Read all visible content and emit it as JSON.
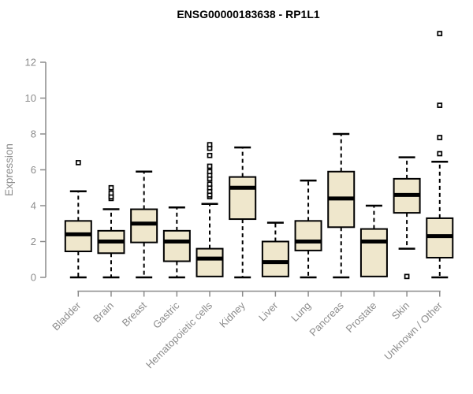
{
  "chart_data": {
    "type": "boxplot",
    "title": "ENSG00000183638 - RP1L1",
    "xlabel": "",
    "ylabel": "Expression",
    "yticks": [
      0,
      2,
      4,
      6,
      8,
      10,
      12
    ],
    "ylim": [
      -0.75,
      13.8
    ],
    "grid": "off",
    "legend": "none",
    "categories": [
      "Bladder",
      "Brain",
      "Breast",
      "Gastric",
      "Hematopoietic cells",
      "Kidney",
      "Liver",
      "Lung",
      "Pancreas",
      "Prostate",
      "Skin",
      "Unknown / Other"
    ],
    "boxes": [
      {
        "category": "Bladder",
        "whisker_low": 0,
        "q1": 1.45,
        "median": 2.4,
        "q3": 3.15,
        "whisker_high": 4.8,
        "outliers": [
          6.4
        ]
      },
      {
        "category": "Brain",
        "whisker_low": 0,
        "q1": 1.35,
        "median": 2.0,
        "q3": 2.6,
        "whisker_high": 3.8,
        "outliers": [
          4.4,
          4.5,
          4.7,
          5.0
        ]
      },
      {
        "category": "Breast",
        "whisker_low": 0,
        "q1": 1.95,
        "median": 3.0,
        "q3": 3.8,
        "whisker_high": 5.9,
        "outliers": []
      },
      {
        "category": "Gastric",
        "whisker_low": 0,
        "q1": 0.9,
        "median": 2.0,
        "q3": 2.6,
        "whisker_high": 3.9,
        "outliers": []
      },
      {
        "category": "Hematopoietic cells",
        "whisker_low": 0,
        "q1": 0.05,
        "median": 1.05,
        "q3": 1.6,
        "whisker_high": 4.1,
        "outliers": [
          4.5,
          4.6,
          4.8,
          5.0,
          5.2,
          5.5,
          5.7,
          5.9,
          6.2,
          6.8,
          7.2,
          7.4
        ]
      },
      {
        "category": "Kidney",
        "whisker_low": 0,
        "q1": 3.25,
        "median": 5.0,
        "q3": 5.6,
        "whisker_high": 7.25,
        "outliers": []
      },
      {
        "category": "Liver",
        "whisker_low": 0,
        "q1": 0.05,
        "median": 0.85,
        "q3": 2.0,
        "whisker_high": 3.05,
        "outliers": []
      },
      {
        "category": "Lung",
        "whisker_low": 0,
        "q1": 1.5,
        "median": 2.0,
        "q3": 3.15,
        "whisker_high": 5.4,
        "outliers": []
      },
      {
        "category": "Pancreas",
        "whisker_low": 0,
        "q1": 2.8,
        "median": 4.4,
        "q3": 5.9,
        "whisker_high": 8.0,
        "outliers": []
      },
      {
        "category": "Prostate",
        "whisker_low": 0,
        "q1": 0.05,
        "median": 2.0,
        "q3": 2.7,
        "whisker_high": 4.0,
        "outliers": []
      },
      {
        "category": "Skin",
        "whisker_low": 1.6,
        "q1": 3.6,
        "median": 4.6,
        "q3": 5.5,
        "whisker_high": 6.7,
        "outliers": [
          0.05
        ]
      },
      {
        "category": "Unknown / Other",
        "whisker_low": 0,
        "q1": 1.1,
        "median": 2.3,
        "q3": 3.3,
        "whisker_high": 6.45,
        "outliers": [
          6.9,
          7.8,
          9.6,
          13.6
        ]
      }
    ],
    "colors": {
      "box_fill": "#EFE7CC",
      "box_border": "#000000",
      "median": "#000000",
      "whisker": "#000000",
      "outlier_stroke": "#000000",
      "outlier_fill": "#ffffff",
      "axis": "#8C8C8C",
      "title": "#000000",
      "background": "#ffffff"
    }
  }
}
